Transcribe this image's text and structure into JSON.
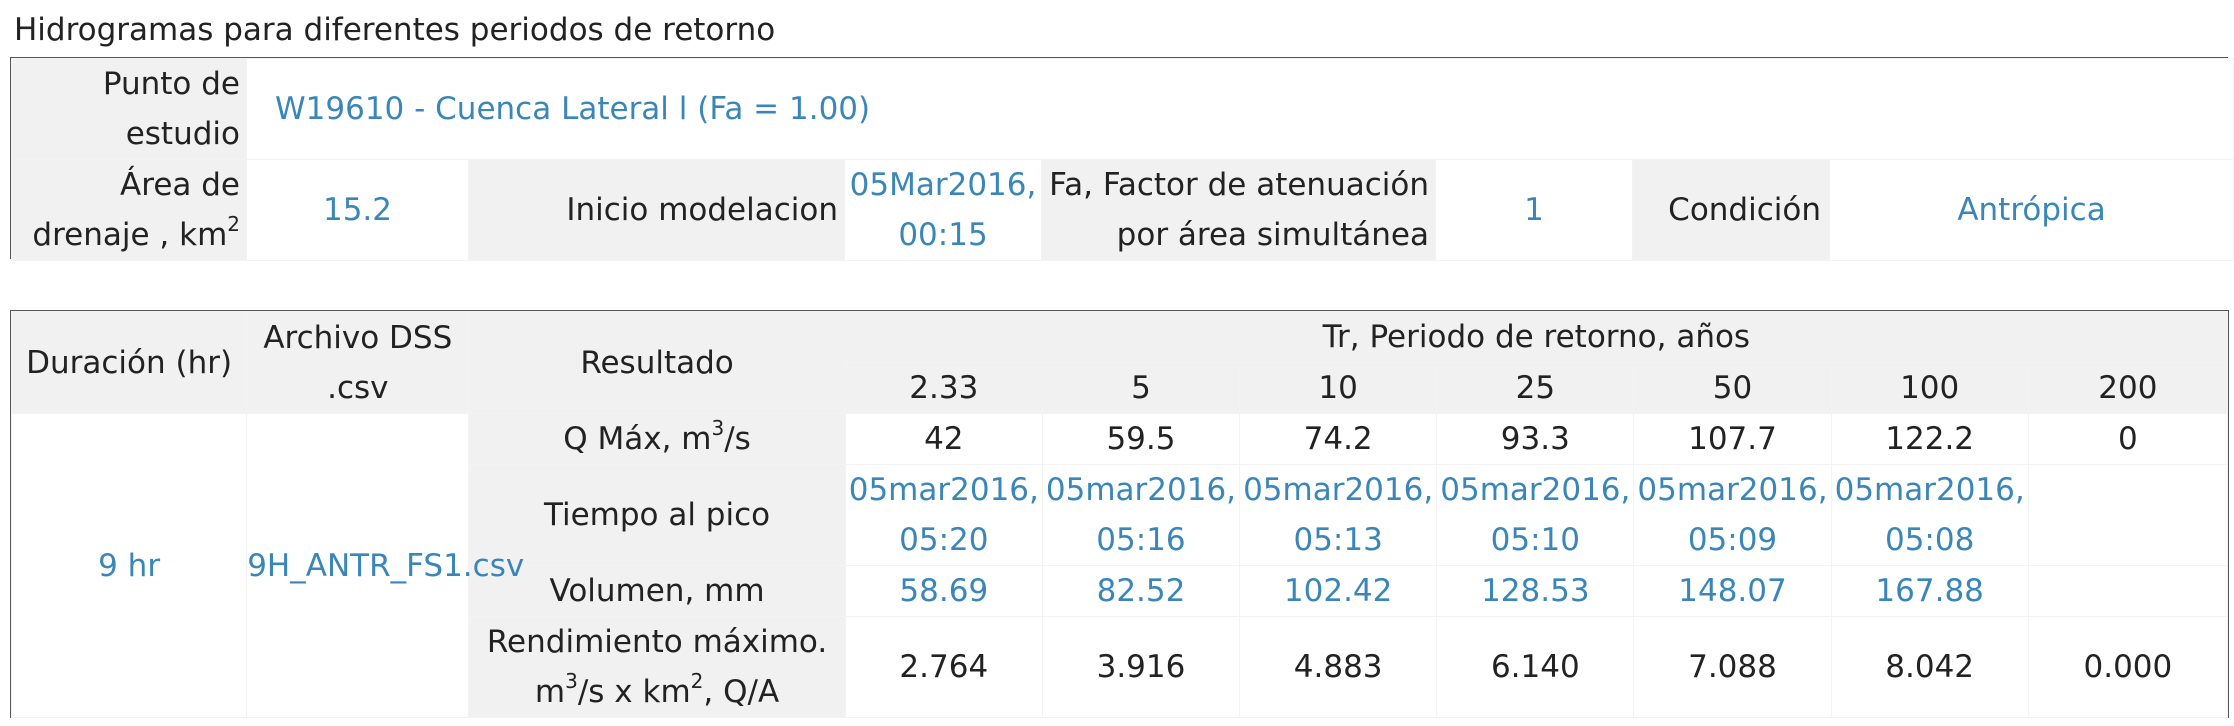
{
  "title": "Hidrogramas para diferentes periodos de retorno",
  "study": {
    "point_label": "Punto de estudio",
    "point_value": "W19610 - Cuenca Lateral l (Fa = 1.00)",
    "area_label_pre": "Área de drenaje , km",
    "area_label_sup": "2",
    "area_value": "15.2",
    "inicio_label": "Inicio modelacion",
    "inicio_value": "05Mar2016, 00:15",
    "fa_label": "Fa, Factor de atenuación por área simultánea",
    "fa_value": "1",
    "condicion_label": "Condición",
    "condicion_value": "Antrópica"
  },
  "results": {
    "headers": {
      "duracion": "Duración (hr)",
      "archivo": "Archivo DSS .csv",
      "resultado": "Resultado",
      "tr": "Tr, Periodo de retorno, años"
    },
    "periods": [
      "2.33",
      "5",
      "10",
      "25",
      "50",
      "100",
      "200"
    ],
    "duracion_value": "9 hr",
    "archivo_value": "9H_ANTR_FS1.csv",
    "rows": [
      {
        "label_pre": "Q Máx, m",
        "label_sup": "3",
        "label_post": "/s",
        "values": [
          "42",
          "59.5",
          "74.2",
          "93.3",
          "107.7",
          "122.2",
          "0"
        ]
      },
      {
        "label": "Tiempo al pico",
        "values": [
          "05mar2016, 05:20",
          "05mar2016, 05:16",
          "05mar2016, 05:13",
          "05mar2016, 05:10",
          "05mar2016, 05:09",
          "05mar2016, 05:08",
          ""
        ]
      },
      {
        "label": "Volumen, mm",
        "values": [
          "58.69",
          "82.52",
          "102.42",
          "128.53",
          "148.07",
          "167.88",
          ""
        ]
      },
      {
        "label_line1": "Rendimiento máximo.",
        "label_line2_a": "m",
        "label_line2_sup1": "3",
        "label_line2_b": "/s x km",
        "label_line2_sup2": "2",
        "label_line2_c": ", Q/A",
        "values": [
          "2.764",
          "3.916",
          "4.883",
          "6.140",
          "7.088",
          "8.042",
          "0.000"
        ]
      }
    ]
  },
  "colors": {
    "link_blue": "#3a86b8",
    "header_gray": "#f1f1f1",
    "text": "#222222"
  }
}
